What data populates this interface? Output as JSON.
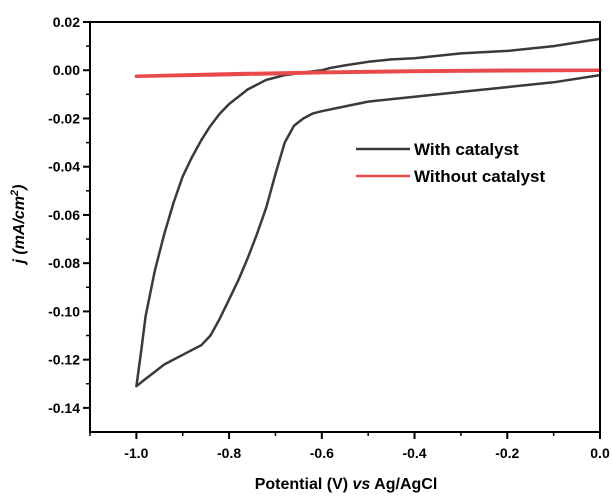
{
  "chart_data": {
    "type": "line",
    "title": "",
    "xlabel": {
      "prefix": "Potential (V) ",
      "italic": "vs",
      "suffix": " Ag/AgCl"
    },
    "ylabel": {
      "italic": "j (mA/cm",
      "sup": "2",
      "close": ")"
    },
    "xlim": [
      -1.1,
      0.0
    ],
    "ylim": [
      -0.15,
      0.02
    ],
    "xticks": [
      -1.0,
      -0.8,
      -0.6,
      -0.4,
      -0.2,
      0.0
    ],
    "xtick_labels": [
      "-1.0",
      "-0.8",
      "-0.6",
      "-0.4",
      "-0.2",
      "0.0"
    ],
    "yticks": [
      0.02,
      0.0,
      -0.02,
      -0.04,
      -0.06,
      -0.08,
      -0.1,
      -0.12,
      -0.14
    ],
    "ytick_labels": [
      "0.02",
      "0.00",
      "-0.02",
      "-0.04",
      "-0.06",
      "-0.08",
      "-0.10",
      "-0.12",
      "-0.14"
    ],
    "grid": false,
    "legend_position": "center-right",
    "series": [
      {
        "name": "With catalyst",
        "color": "#3a3a3a",
        "x": [
          0.0,
          -0.1,
          -0.2,
          -0.3,
          -0.4,
          -0.5,
          -0.55,
          -0.6,
          -0.62,
          -0.64,
          -0.66,
          -0.68,
          -0.7,
          -0.72,
          -0.74,
          -0.76,
          -0.78,
          -0.8,
          -0.82,
          -0.84,
          -0.86,
          -0.88,
          -0.9,
          -0.92,
          -0.94,
          -0.96,
          -0.98,
          -1.0,
          -1.0,
          -0.99,
          -0.98,
          -0.96,
          -0.94,
          -0.92,
          -0.9,
          -0.88,
          -0.86,
          -0.84,
          -0.82,
          -0.8,
          -0.78,
          -0.76,
          -0.74,
          -0.72,
          -0.7,
          -0.68,
          -0.66,
          -0.64,
          -0.62,
          -0.6,
          -0.58,
          -0.55,
          -0.5,
          -0.45,
          -0.4,
          -0.3,
          -0.2,
          -0.1,
          0.0
        ],
        "y": [
          -0.002,
          -0.005,
          -0.007,
          -0.009,
          -0.011,
          -0.013,
          -0.015,
          -0.017,
          -0.018,
          -0.02,
          -0.023,
          -0.03,
          -0.043,
          -0.057,
          -0.068,
          -0.078,
          -0.087,
          -0.095,
          -0.103,
          -0.11,
          -0.114,
          -0.116,
          -0.118,
          -0.12,
          -0.122,
          -0.125,
          -0.128,
          -0.131,
          -0.131,
          -0.117,
          -0.102,
          -0.083,
          -0.068,
          -0.055,
          -0.044,
          -0.036,
          -0.029,
          -0.023,
          -0.018,
          -0.014,
          -0.011,
          -0.008,
          -0.006,
          -0.004,
          -0.003,
          -0.002,
          -0.0015,
          -0.001,
          -0.0005,
          0.0,
          0.001,
          0.002,
          0.0035,
          0.0045,
          0.005,
          0.007,
          0.008,
          0.01,
          0.013
        ]
      },
      {
        "name": "Without catalyst",
        "color": "#e84a4a",
        "x": [
          -1.0,
          -0.8,
          -0.6,
          -0.4,
          -0.2,
          0.0,
          0.0,
          -0.2,
          -0.4,
          -0.6,
          -0.8,
          -1.0
        ],
        "y": [
          -0.0025,
          -0.0015,
          -0.0008,
          -0.0003,
          0.0,
          0.0,
          0.0,
          -0.0002,
          -0.0005,
          -0.001,
          -0.0018,
          -0.0025
        ]
      }
    ]
  }
}
